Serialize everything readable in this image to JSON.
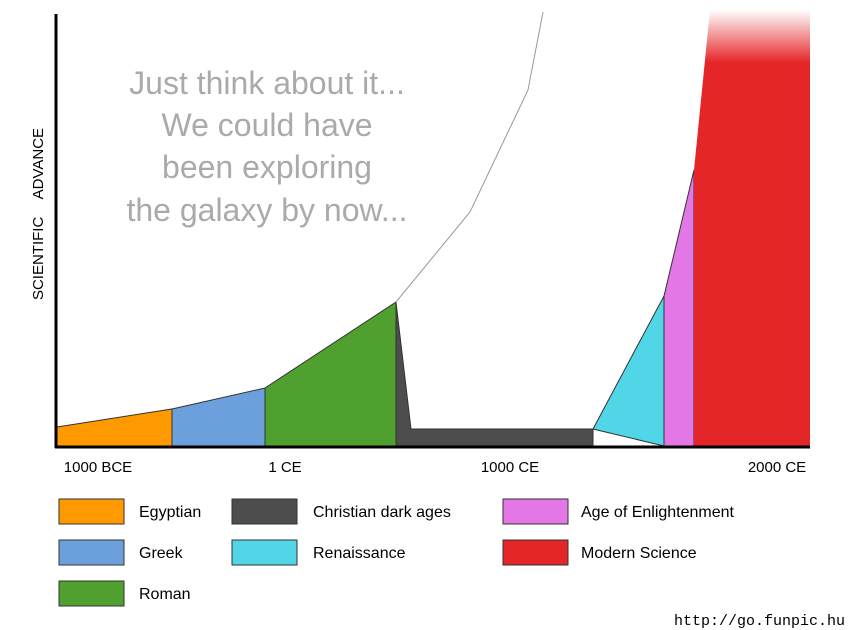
{
  "annotation": [
    "Just think about it...",
    "We could have",
    "been exploring",
    "the galaxy by now..."
  ],
  "y_axis_label": "SCIENTIFIC ADVANCE",
  "x_labels": [
    "1000 BCE",
    "1 CE",
    "1000 CE",
    "2000 CE"
  ],
  "legend": [
    {
      "name": "Egyptian",
      "color": "#ff9900"
    },
    {
      "name": "Greek",
      "color": "#6ca0dc"
    },
    {
      "name": "Roman",
      "color": "#4fa02e"
    },
    {
      "name": "Christian dark ages",
      "color": "#4d4d4d"
    },
    {
      "name": "Renaissance",
      "color": "#50d6e6"
    },
    {
      "name": "Age of Enlightenment",
      "color": "#e377e6"
    },
    {
      "name": "Modern Science",
      "color": "#e52628"
    }
  ],
  "watermark": "http://go.funpic.hu"
}
